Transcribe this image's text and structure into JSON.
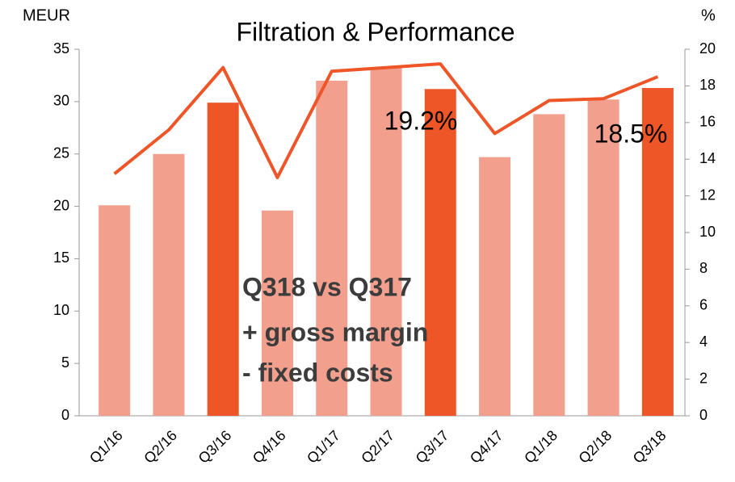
{
  "chart_data": {
    "type": "bar-line",
    "title": "Filtration & Performance",
    "y_label": "MEUR",
    "y2_label": "%",
    "categories": [
      "Q1/16",
      "Q2/16",
      "Q3/16",
      "Q4/16",
      "Q1/17",
      "Q2/17",
      "Q3/17",
      "Q4/17",
      "Q1/18",
      "Q2/18",
      "Q3/18"
    ],
    "series": [
      {
        "type": "bar",
        "values": [
          20.1,
          25.0,
          29.9,
          19.6,
          32.0,
          33.2,
          31.2,
          24.7,
          28.8,
          30.2,
          31.3
        ],
        "colors": [
          "#f2a08d",
          "#f2a08d",
          "#ee5527",
          "#f2a08d",
          "#f2a08d",
          "#f2a08d",
          "#ee5527",
          "#f2a08d",
          "#f2a08d",
          "#f2a08d",
          "#ee5527"
        ]
      },
      {
        "type": "line",
        "axis": "y2",
        "color": "#ee5527",
        "values": [
          13.2,
          15.6,
          19.0,
          13.0,
          18.8,
          19.0,
          19.2,
          15.4,
          17.2,
          17.3,
          18.5
        ]
      }
    ],
    "ylim": [
      0,
      35
    ],
    "yticks": [
      0,
      5,
      10,
      15,
      20,
      25,
      30,
      35
    ],
    "y2lim": [
      0,
      20
    ],
    "y2ticks": [
      0,
      2,
      4,
      6,
      8,
      10,
      12,
      14,
      16,
      18,
      20
    ],
    "point_labels": [
      "19.2%",
      "18.5%"
    ],
    "annotation": [
      "Q318 vs Q317",
      "+ gross margin",
      "- fixed costs"
    ]
  }
}
